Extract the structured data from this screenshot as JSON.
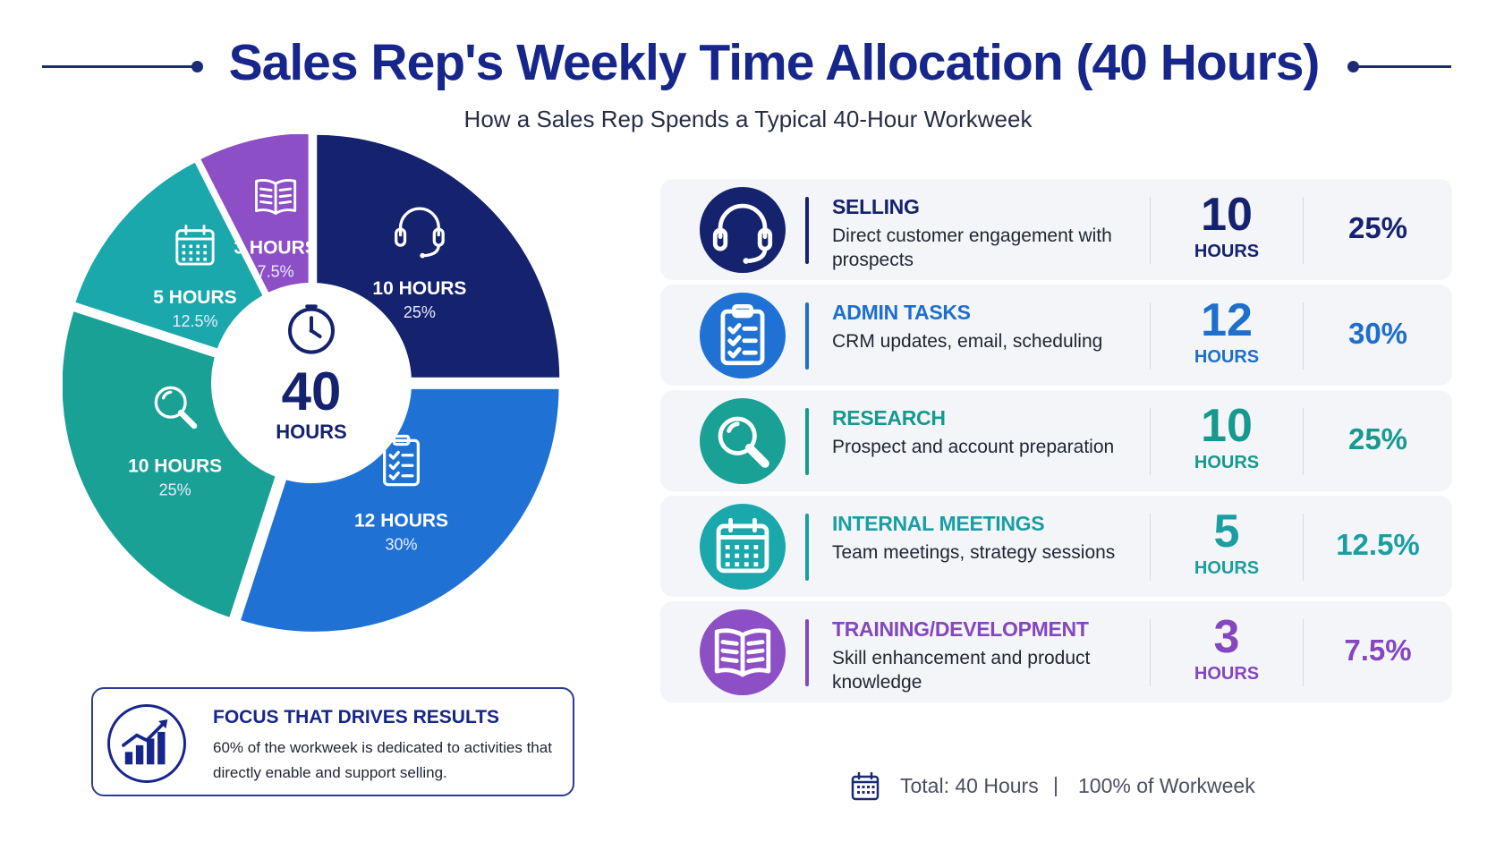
{
  "title": "Sales Rep's Weekly Time Allocation (40 Hours)",
  "subtitle": "How a Sales Rep Spends a Typical 40-Hour Workweek",
  "center": {
    "number": "40",
    "unit": "HOURS"
  },
  "chart_data": {
    "type": "pie",
    "title": "Sales Rep's Weekly Time Allocation (40 Hours)",
    "total_hours": 40,
    "slices": [
      {
        "hours": 10,
        "percent": 25,
        "hours_label": "10 HOURS",
        "percent_label": "25%",
        "color": "#15226e",
        "icon": "headset-icon"
      },
      {
        "hours": 12,
        "percent": 30,
        "hours_label": "12 HOURS",
        "percent_label": "30%",
        "color": "#1f72d4",
        "icon": "clipboard-checklist-icon"
      },
      {
        "hours": 10,
        "percent": 25,
        "hours_label": "10 HOURS",
        "percent_label": "25%",
        "color": "#1aa196",
        "icon": "magnifier-icon"
      },
      {
        "hours": 5,
        "percent": 12.5,
        "hours_label": "5 HOURS",
        "percent_label": "12.5%",
        "color": "#1ba8ac",
        "icon": "calendar-icon"
      },
      {
        "hours": 3,
        "percent": 7.5,
        "hours_label": "3 HOURS",
        "percent_label": "7.5%",
        "color": "#8d4fc6",
        "icon": "open-book-icon"
      }
    ]
  },
  "activities": [
    {
      "title": "SELLING",
      "desc": "Direct customer engagement with prospects",
      "hours": "10",
      "unit": "HOURS",
      "percent": "25%",
      "color": "#15226e",
      "icon_bg": "#15226e",
      "icon": "headset-icon"
    },
    {
      "title": "ADMIN TASKS",
      "desc": "CRM updates, email, scheduling",
      "hours": "12",
      "unit": "HOURS",
      "percent": "30%",
      "color": "#1e6fcc",
      "icon_bg": "#1f72d4",
      "icon": "clipboard-checklist-icon"
    },
    {
      "title": "RESEARCH",
      "desc": "Prospect and account preparation",
      "hours": "10",
      "unit": "HOURS",
      "percent": "25%",
      "color": "#16998f",
      "icon_bg": "#1aa196",
      "icon": "magnifier-icon"
    },
    {
      "title": "INTERNAL MEETINGS",
      "desc": "Team meetings, strategy sessions",
      "hours": "5",
      "unit": "HOURS",
      "percent": "12.5%",
      "color": "#1a9ea2",
      "icon_bg": "#1ba8ac",
      "icon": "calendar-icon"
    },
    {
      "title": "TRAINING/DEVELOPMENT",
      "desc": "Skill enhancement and product knowledge",
      "hours": "3",
      "unit": "HOURS",
      "percent": "7.5%",
      "color": "#8447be",
      "icon_bg": "#8d4fc6",
      "icon": "open-book-icon"
    }
  ],
  "focus": {
    "title": "FOCUS THAT DRIVES RESULTS",
    "text": "60% of the workweek is dedicated to activities that directly enable and support selling.",
    "icon": "growth-bar-chart-icon"
  },
  "total": {
    "hours_text": "Total: 40 Hours",
    "separator": "|",
    "percent_text": "100% of Workweek",
    "icon": "calendar-icon"
  }
}
